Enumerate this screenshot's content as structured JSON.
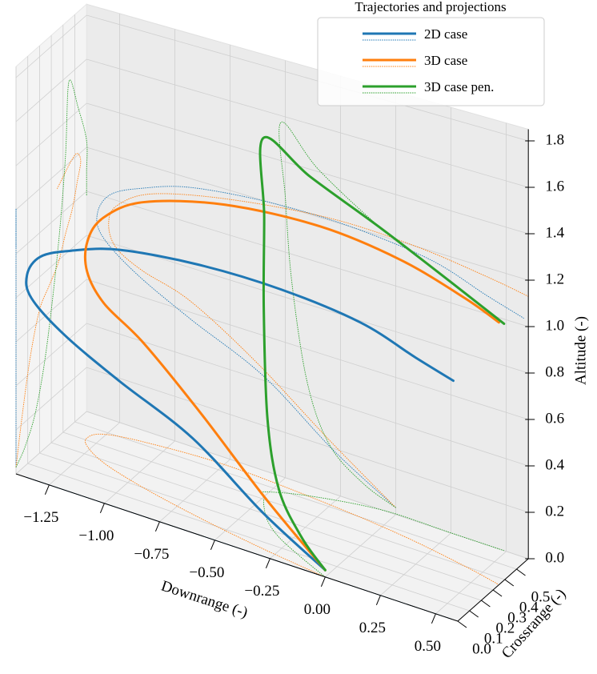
{
  "chart_data": {
    "type": "line3d",
    "xlabel": "Downrange (-)",
    "ylabel": "Crossrange (-)",
    "zlabel": "Altitude (-)",
    "legend_title": "Trajectories and projections",
    "legend_loc": "upper right",
    "grid": true,
    "projections": true,
    "xlim": [
      -1.4,
      0.6
    ],
    "ylim": [
      0,
      0.6
    ],
    "zlim": [
      0,
      1.85
    ],
    "xticks": [
      {
        "value": -1.25,
        "label": "−1.25"
      },
      {
        "value": -1,
        "label": "−1.00"
      },
      {
        "value": -0.75,
        "label": "−0.75"
      },
      {
        "value": -0.5,
        "label": "−0.50"
      },
      {
        "value": -0.25,
        "label": "−0.25"
      },
      {
        "value": 0,
        "label": "0.00"
      },
      {
        "value": 0.25,
        "label": "0.25"
      },
      {
        "value": 0.5,
        "label": "0.50"
      }
    ],
    "yticks": [
      {
        "value": 0,
        "label": "0.0"
      },
      0.1,
      0.2,
      0.3,
      0.4,
      0.5
    ],
    "zticks": [
      {
        "value": 0,
        "label": "0.0"
      },
      0.2,
      0.4,
      0.6,
      0.8,
      {
        "value": 1,
        "label": "1.0"
      },
      1.2,
      1.4,
      1.6,
      1.8
    ],
    "series": [
      {
        "name": "2D case",
        "color": "#1f77b4",
        "x": [
          0,
          -0.28,
          -0.6,
          -0.93,
          -1.18,
          -1.33,
          -1.35,
          -1.29,
          -1.15,
          -0.93,
          -0.57,
          -0.2,
          0.16,
          0.41,
          0.58
        ],
        "y": [
          0,
          0,
          0,
          0,
          0,
          0,
          0,
          0,
          0,
          0,
          0,
          0,
          0,
          0,
          0
        ],
        "z": [
          0.03,
          0.19,
          0.42,
          0.57,
          0.7,
          0.82,
          0.92,
          1.02,
          1.09,
          1.16,
          1.2,
          1.2,
          1.16,
          1.08,
          1.03
        ]
      },
      {
        "name": "3D case",
        "color": "#ff7f0e",
        "x": [
          0,
          -0.3,
          -0.63,
          -0.93,
          -1.15,
          -1.27,
          -1.3,
          -1.26,
          -1.1,
          -0.75,
          -0.3,
          0.09,
          0.42,
          0.6
        ],
        "y": [
          0,
          0.05,
          0.12,
          0.2,
          0.28,
          0.36,
          0.42,
          0.48,
          0.52,
          0.55,
          0.52,
          0.47,
          0.4,
          0.35
        ],
        "z": [
          0.03,
          0.23,
          0.47,
          0.65,
          0.72,
          0.79,
          0.89,
          0.98,
          1.08,
          1.16,
          1.21,
          1.2,
          1.16,
          1.13
        ]
      },
      {
        "name": "3D case pen.",
        "color": "#2ca02c",
        "x": [
          0,
          -0.15,
          -0.3,
          -0.4,
          -0.47,
          -0.5,
          -0.52,
          -0.35,
          -0.06,
          0.25,
          0.49
        ],
        "y": [
          0,
          0.08,
          0.17,
          0.26,
          0.36,
          0.42,
          0.45,
          0.53,
          0.6,
          0.6,
          0.6
        ],
        "z": [
          0.03,
          0.09,
          0.21,
          0.45,
          0.87,
          1.24,
          1.57,
          1.41,
          1.23,
          1.09,
          0.98
        ]
      }
    ]
  }
}
